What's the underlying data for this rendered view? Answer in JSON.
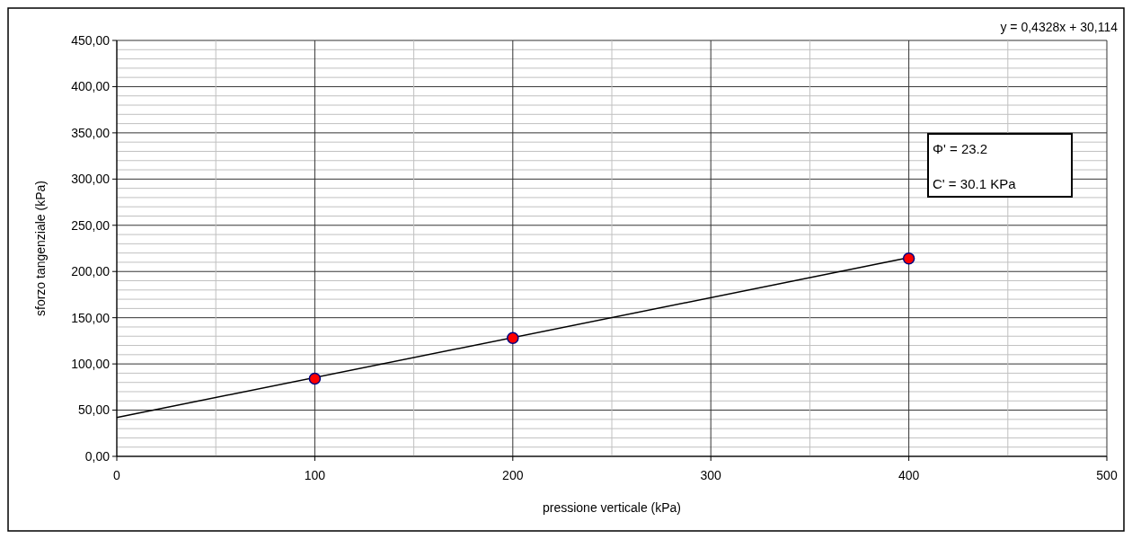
{
  "chart_data": {
    "type": "scatter",
    "xlabel": "pressione verticale (kPa)",
    "ylabel": "sforzo tangenziale (kPa)",
    "xlim": [
      0,
      500
    ],
    "ylim": [
      0,
      450
    ],
    "xticks": [
      0,
      {
        "value": 50,
        "label": null
      },
      100,
      {
        "value": 150,
        "label": null
      },
      200,
      {
        "value": 250,
        "label": null
      },
      300,
      {
        "value": 350,
        "label": null
      },
      400,
      {
        "value": 450,
        "label": null
      },
      500
    ],
    "yticks": [
      {
        "value": 0,
        "label": "0,00"
      },
      {
        "value": 10,
        "label": null
      },
      {
        "value": 20,
        "label": null
      },
      {
        "value": 30,
        "label": null
      },
      {
        "value": 40,
        "label": null
      },
      {
        "value": 50,
        "label": "50,00"
      },
      {
        "value": 60,
        "label": null
      },
      {
        "value": 70,
        "label": null
      },
      {
        "value": 80,
        "label": null
      },
      {
        "value": 90,
        "label": null
      },
      {
        "value": 100,
        "label": "100,00"
      },
      {
        "value": 110,
        "label": null
      },
      {
        "value": 120,
        "label": null
      },
      {
        "value": 130,
        "label": null
      },
      {
        "value": 140,
        "label": null
      },
      {
        "value": 150,
        "label": "150,00"
      },
      {
        "value": 160,
        "label": null
      },
      {
        "value": 170,
        "label": null
      },
      {
        "value": 180,
        "label": null
      },
      {
        "value": 190,
        "label": null
      },
      {
        "value": 200,
        "label": "200,00"
      },
      {
        "value": 210,
        "label": null
      },
      {
        "value": 220,
        "label": null
      },
      {
        "value": 230,
        "label": null
      },
      {
        "value": 240,
        "label": null
      },
      {
        "value": 250,
        "label": "250,00"
      },
      {
        "value": 260,
        "label": null
      },
      {
        "value": 270,
        "label": null
      },
      {
        "value": 280,
        "label": null
      },
      {
        "value": 290,
        "label": null
      },
      {
        "value": 300,
        "label": "300,00"
      },
      {
        "value": 310,
        "label": null
      },
      {
        "value": 320,
        "label": null
      },
      {
        "value": 330,
        "label": null
      },
      {
        "value": 340,
        "label": null
      },
      {
        "value": 350,
        "label": "350,00"
      },
      {
        "value": 360,
        "label": null
      },
      {
        "value": 370,
        "label": null
      },
      {
        "value": 380,
        "label": null
      },
      {
        "value": 390,
        "label": null
      },
      {
        "value": 400,
        "label": "400,00"
      },
      {
        "value": 410,
        "label": null
      },
      {
        "value": 420,
        "label": null
      },
      {
        "value": 430,
        "label": null
      },
      {
        "value": 440,
        "label": null
      },
      {
        "value": 450,
        "label": "450,00"
      }
    ],
    "grid": true,
    "series": [
      {
        "type": "line",
        "color": "#000000",
        "x": [
          0,
          400
        ],
        "values": [
          42,
          215
        ],
        "marker": "none"
      },
      {
        "color": "#ff0000",
        "marker": "circle",
        "x": [
          100,
          200,
          400
        ],
        "values": [
          84,
          128,
          214
        ]
      }
    ],
    "annotations": [
      "y = 0,4328x + 30,114",
      "Φ' =  23.2",
      "C' = 30.1 KPa"
    ]
  }
}
